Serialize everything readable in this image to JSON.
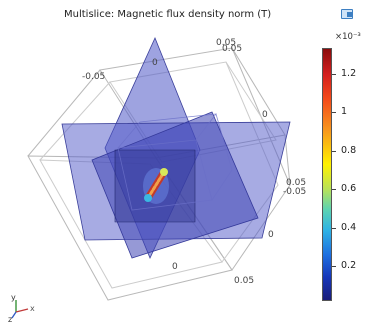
{
  "title": "Multislice: Magnetic flux density norm (T)",
  "toolbar": {
    "icon": "view-icon"
  },
  "colorbar": {
    "multiplier": "×10⁻³",
    "labels": [
      "1.2",
      "1",
      "0.8",
      "0.6",
      "0.4",
      "0.2"
    ],
    "colors": [
      "#8a0c0c",
      "#f7941d",
      "#fff200",
      "#5cd3b2",
      "#1e6fe0",
      "#1a1d7a"
    ]
  },
  "ticks": {
    "top_left": "-0.05",
    "top_zero": "0",
    "top_right": "0.05",
    "top_right2": "0.05",
    "right_zero": "0",
    "right_a": "0.05",
    "right_b": "-0.05",
    "mid_right_zero": "0",
    "bottom_zero": "0",
    "bottom_right": "0.05"
  },
  "axes": {
    "y": "y",
    "x": "x",
    "z": "z"
  }
}
